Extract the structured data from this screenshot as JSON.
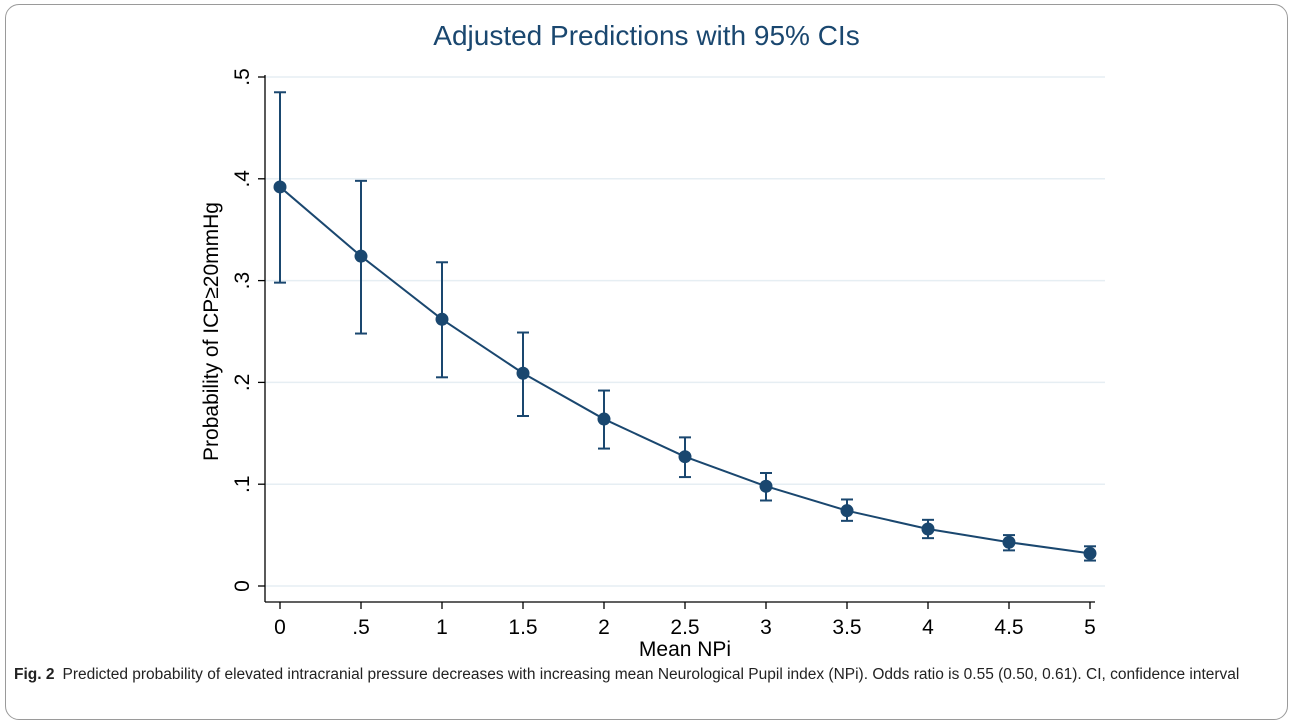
{
  "chart_data": {
    "type": "line",
    "title": "Adjusted Predictions with 95% CIs",
    "xlabel": "Mean NPi",
    "ylabel": "Probability of ICP≥20mmHg",
    "x": [
      0,
      0.5,
      1,
      1.5,
      2,
      2.5,
      3,
      3.5,
      4,
      4.5,
      5
    ],
    "x_tick_labels": [
      "0",
      ".5",
      "1",
      "1.5",
      "2",
      "2.5",
      "3",
      "3.5",
      "4",
      "4.5",
      "5"
    ],
    "y_ticks": [
      0,
      0.1,
      0.2,
      0.3,
      0.4,
      0.5
    ],
    "y_tick_labels": [
      "0",
      ".1",
      ".2",
      ".3",
      ".4",
      ".5"
    ],
    "xlim": [
      0,
      5
    ],
    "ylim": [
      0,
      0.5
    ],
    "grid": true,
    "series": [
      {
        "values": [
          0.392,
          0.324,
          0.262,
          0.209,
          0.164,
          0.127,
          0.098,
          0.074,
          0.056,
          0.043,
          0.032
        ],
        "ci_lower": [
          0.298,
          0.248,
          0.205,
          0.167,
          0.135,
          0.107,
          0.084,
          0.064,
          0.047,
          0.035,
          0.025
        ],
        "ci_upper": [
          0.485,
          0.398,
          0.318,
          0.249,
          0.192,
          0.146,
          0.111,
          0.085,
          0.065,
          0.05,
          0.039
        ]
      }
    ],
    "colors": {
      "series": "#1a476f",
      "grid": "#e6eef3",
      "title": "#1a476f"
    }
  },
  "caption": {
    "label": "Fig. 2",
    "text": "Predicted probability of elevated intracranial pressure decreases with increasing mean Neurological Pupil index (NPi). Odds ratio is 0.55 (0.50, 0.61). CI, confidence interval"
  }
}
